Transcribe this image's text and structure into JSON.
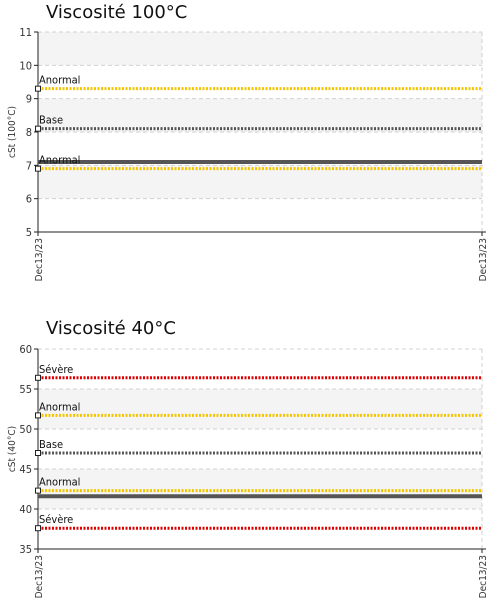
{
  "chart_data": [
    {
      "type": "line",
      "title": "Viscosité 100°C",
      "ylabel": "cSt (100°C)",
      "ylim": [
        5,
        11
      ],
      "yticks": [
        5,
        6,
        7,
        8,
        9,
        10,
        11
      ],
      "x": [
        "Dec13/23",
        "Dec13/23"
      ],
      "grid": true,
      "series": [
        {
          "name": "Anormal",
          "y": 9.3,
          "color": "#f5c400",
          "style": "dotted"
        },
        {
          "name": "Base",
          "y": 8.1,
          "color": "#555555",
          "style": "dotted"
        },
        {
          "name": "",
          "y": 7.1,
          "color": "#555555",
          "style": "solid"
        },
        {
          "name": "Anormal",
          "y": 6.9,
          "color": "#f5c400",
          "style": "dotted"
        }
      ]
    },
    {
      "type": "line",
      "title": "Viscosité 40°C",
      "ylabel": "cSt (40°C)",
      "ylim": [
        35,
        60
      ],
      "yticks": [
        35,
        40,
        45,
        50,
        55,
        60
      ],
      "x": [
        "Dec13/23",
        "Dec13/23"
      ],
      "grid": true,
      "series": [
        {
          "name": "Sévère",
          "y": 56.4,
          "color": "#e00000",
          "style": "dotted"
        },
        {
          "name": "Anormal",
          "y": 51.7,
          "color": "#f5c400",
          "style": "dotted"
        },
        {
          "name": "Base",
          "y": 47.0,
          "color": "#555555",
          "style": "dotted"
        },
        {
          "name": "Anormal",
          "y": 42.3,
          "color": "#f5c400",
          "style": "dotted"
        },
        {
          "name": "",
          "y": 41.6,
          "color": "#555555",
          "style": "solid"
        },
        {
          "name": "Sévère",
          "y": 37.6,
          "color": "#e00000",
          "style": "dotted"
        }
      ]
    }
  ]
}
